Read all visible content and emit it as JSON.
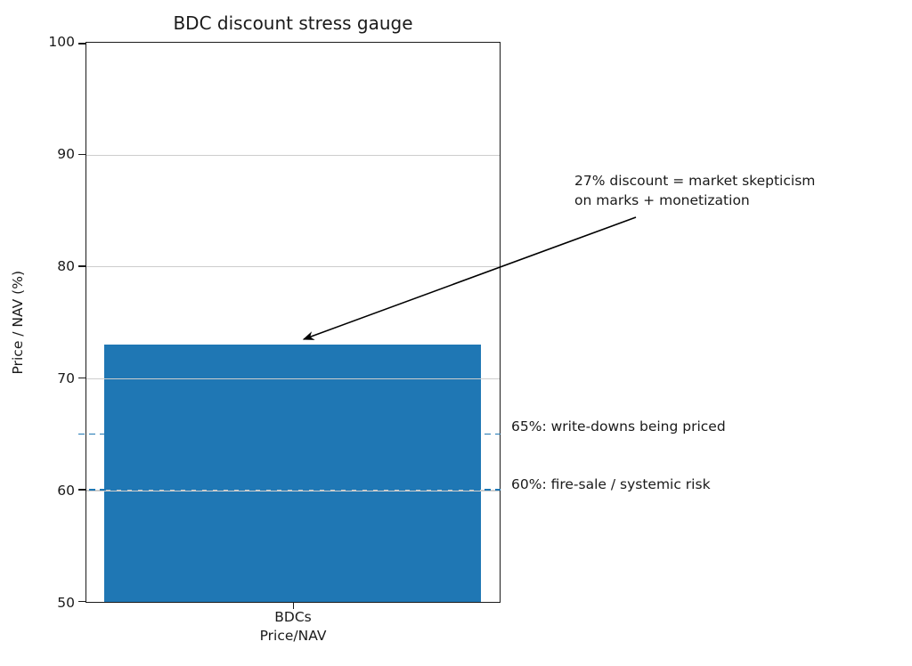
{
  "title": "BDC discount stress gauge",
  "chart_data": {
    "type": "bar",
    "title": "BDC discount stress gauge",
    "categories": [
      "BDCs Price/NAV"
    ],
    "values": [
      73
    ],
    "xlabel": "",
    "ylabel": "Price / NAV (%)",
    "ylim": [
      50,
      100
    ],
    "yticks": [
      "100",
      "90",
      "80",
      "70",
      "60",
      "50"
    ],
    "xtick_line1": "BDCs",
    "xtick_line2": "Price/NAV",
    "grid": "horizontal gridlines at 60, 70, 80, 90",
    "grid_color": "#cdcdcd",
    "bar_color": "#1f77b4",
    "legend": "none",
    "annotation": {
      "text": "27% discount = market skepticism\non marks + monetization",
      "points_to_value": 73,
      "arrow_color": "#000000"
    },
    "thresholds": [
      {
        "value": 65,
        "label": "65%: write-downs being priced",
        "style": "dashed",
        "color": "#1f77b4"
      },
      {
        "value": 60,
        "label": "60%: fire-sale / systemic risk",
        "style": "dashed",
        "color": "#1f77b4"
      }
    ]
  }
}
